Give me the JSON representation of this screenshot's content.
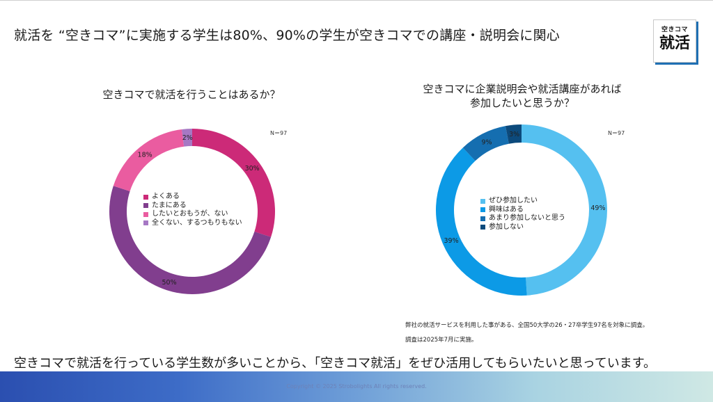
{
  "headline": "就活を “空きコマ”に実施する学生は80%、90%の学生が空きコマでの講座・説明会に関心",
  "logo": {
    "line1": "空きコマ",
    "line2": "就活"
  },
  "conclusion": "空きコマで就活を行っている学生数が多いことから、「空きコマ就活」をぜひ活用してもらいたいと思っています。",
  "notes": [
    "弊社の就活サービスを利用した事がある、全国50大学の26・27卒学生97名を対象に調査。",
    "調査は2025年7月に実施。"
  ],
  "copyright": "Copyright © 2025 Strobolights All rights reserved.",
  "chart_data": [
    {
      "type": "pie",
      "title": "空きコマで就活を行うことはあるか？",
      "n_label": "N＝97",
      "categories": [
        "よくある",
        "たまにある",
        "したいとおもうが、ない",
        "全くない、するつもりもない"
      ],
      "values": [
        30,
        50,
        18,
        2
      ],
      "labels": [
        "30%",
        "50%",
        "18%",
        "2%"
      ],
      "colors": [
        "#cc2a78",
        "#813e8e",
        "#ea5ca0",
        "#a678c4"
      ]
    },
    {
      "type": "pie",
      "title": "空きコマに企業説明会や就活講座があれば 参加したいと思うか？",
      "title_lines": [
        "空きコマに企業説明会や就活講座があれば",
        "参加したいと思うか？"
      ],
      "n_label": "N＝97",
      "categories": [
        "ぜひ参加したい",
        "興味はある",
        "あまり参加しないと思う",
        "参加しない"
      ],
      "values": [
        49,
        39,
        9,
        3
      ],
      "labels": [
        "49%",
        "39%",
        "9%",
        "3%"
      ],
      "colors": [
        "#55c0f0",
        "#0c9ae6",
        "#156eb0",
        "#0c4a7c"
      ]
    }
  ]
}
